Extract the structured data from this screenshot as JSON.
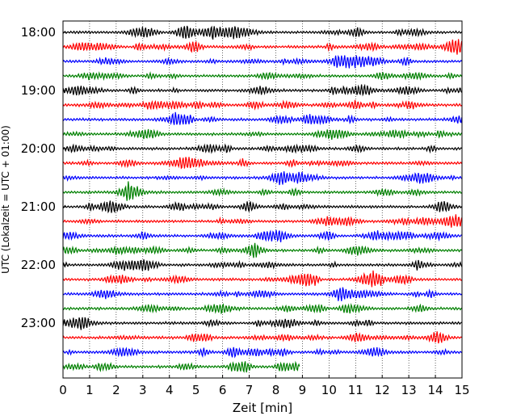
{
  "chart_data": {
    "type": "line",
    "subtype": "helicorder",
    "title": "",
    "xlabel": "Zeit  [min]",
    "ylabel": "UTC (Lokalzeit = UTC + 01:00)",
    "xlim": [
      0,
      15
    ],
    "x_ticks": [
      "0",
      "1",
      "2",
      "3",
      "4",
      "5",
      "6",
      "7",
      "8",
      "9",
      "10",
      "11",
      "12",
      "13",
      "14",
      "15"
    ],
    "y_tick_labels": [
      "18:00",
      "19:00",
      "20:00",
      "21:00",
      "22:00",
      "23:00"
    ],
    "row_interval_minutes": 15,
    "rows_per_hour": 4,
    "colors": [
      "#000000",
      "#ff0000",
      "#0000ff",
      "#008000"
    ],
    "rows": [
      {
        "start": "18:00",
        "color": "#000000",
        "end_min": 15
      },
      {
        "start": "18:15",
        "color": "#ff0000",
        "end_min": 15
      },
      {
        "start": "18:30",
        "color": "#0000ff",
        "end_min": 15
      },
      {
        "start": "18:45",
        "color": "#008000",
        "end_min": 15
      },
      {
        "start": "19:00",
        "color": "#000000",
        "end_min": 15
      },
      {
        "start": "19:15",
        "color": "#ff0000",
        "end_min": 15
      },
      {
        "start": "19:30",
        "color": "#0000ff",
        "end_min": 15
      },
      {
        "start": "19:45",
        "color": "#008000",
        "end_min": 15
      },
      {
        "start": "20:00",
        "color": "#000000",
        "end_min": 15
      },
      {
        "start": "20:15",
        "color": "#ff0000",
        "end_min": 15
      },
      {
        "start": "20:30",
        "color": "#0000ff",
        "end_min": 15
      },
      {
        "start": "20:45",
        "color": "#008000",
        "end_min": 15
      },
      {
        "start": "21:00",
        "color": "#000000",
        "end_min": 15
      },
      {
        "start": "21:15",
        "color": "#ff0000",
        "end_min": 15
      },
      {
        "start": "21:30",
        "color": "#0000ff",
        "end_min": 15
      },
      {
        "start": "21:45",
        "color": "#008000",
        "end_min": 15
      },
      {
        "start": "22:00",
        "color": "#000000",
        "end_min": 15
      },
      {
        "start": "22:15",
        "color": "#ff0000",
        "end_min": 15
      },
      {
        "start": "22:30",
        "color": "#0000ff",
        "end_min": 15
      },
      {
        "start": "22:45",
        "color": "#008000",
        "end_min": 15
      },
      {
        "start": "23:00",
        "color": "#000000",
        "end_min": 15
      },
      {
        "start": "23:15",
        "color": "#ff0000",
        "end_min": 15
      },
      {
        "start": "23:30",
        "color": "#0000ff",
        "end_min": 15
      },
      {
        "start": "23:45",
        "color": "#008000",
        "end_min": 8.9
      }
    ],
    "grid": "vertical dotted at each minute"
  }
}
